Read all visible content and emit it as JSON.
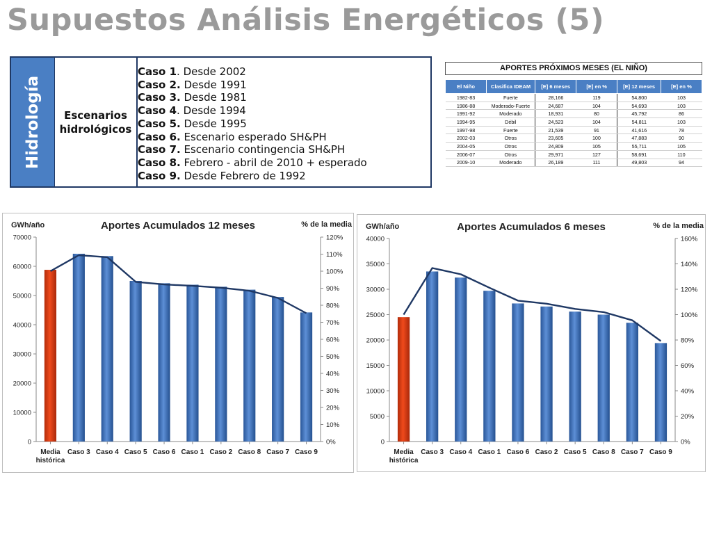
{
  "page_title": "Supuestos Análisis Energéticos (5)",
  "hydrology": {
    "side_label": "Hidrología",
    "mid_label_1": "Escenarios",
    "mid_label_2": "hidrológicos",
    "cases": [
      {
        "bold": "Caso 1",
        "rest": ". Desde 2002"
      },
      {
        "bold": "Caso 2.",
        "rest": " Desde 1991"
      },
      {
        "bold": "Caso 3.",
        "rest": " Desde 1981"
      },
      {
        "bold": "Caso 4",
        "rest": ". Desde 1994"
      },
      {
        "bold": "Caso 5.",
        "rest": " Desde 1995"
      },
      {
        "bold": "Caso 6.",
        "rest": " Escenario esperado SH&PH"
      },
      {
        "bold": "Caso 7.",
        "rest": " Escenario contingencia  SH&PH"
      },
      {
        "bold": "Caso 8.",
        "rest": " Febrero - abril de 2010 + esperado"
      },
      {
        "bold": "Caso 9.",
        "rest": " Desde Febrero de 1992"
      }
    ]
  },
  "nino_table": {
    "title": "APORTES PRÓXIMOS MESES (EL NIÑO)",
    "headers": [
      "El Niño",
      "Clasifica IDEAM",
      "[E] 6 meses",
      "[E] en %",
      "[E] 12 meses",
      "[E] en %"
    ],
    "rows": [
      [
        "1982-83",
        "Fuerte",
        "28,166",
        "119",
        "54,800",
        "103"
      ],
      [
        "1986-88",
        "Moderado-Fuerte",
        "24,687",
        "104",
        "54,693",
        "103"
      ],
      [
        "1991-92",
        "Moderado",
        "18,931",
        "80",
        "45,792",
        "86"
      ],
      [
        "1994-95",
        "Débil",
        "24,523",
        "104",
        "54,811",
        "103"
      ],
      [
        "1997-98",
        "Fuerte",
        "21,539",
        "91",
        "41,616",
        "78"
      ],
      [
        "2002-03",
        "Otros",
        "23,605",
        "100",
        "47,883",
        "90"
      ],
      [
        "2004-05",
        "Otros",
        "24,809",
        "105",
        "55,711",
        "105"
      ],
      [
        "2006-07",
        "Otros",
        "29,971",
        "127",
        "58,691",
        "110"
      ],
      [
        "2009-10",
        "Moderado",
        "26,189",
        "111",
        "49,803",
        "94"
      ]
    ]
  },
  "colors": {
    "bar_blue": "#3b6fb6",
    "bar_red": "#d43a12",
    "line": "#1f3864",
    "header_blue": "#4a7fc4"
  },
  "chart_data": [
    {
      "type": "bar",
      "title": "Aportes Acumulados 12 meses",
      "ylabel": "GWh/año",
      "y2label": "% de la media",
      "categories": [
        "Media histórica",
        "Caso 3",
        "Caso 4",
        "Caso 5",
        "Caso 6",
        "Caso 1",
        "Caso 2",
        "Caso 8",
        "Caso 7",
        "Caso 9"
      ],
      "category_lines": [
        [
          "Media",
          "histórica"
        ],
        [
          "Caso 3"
        ],
        [
          "Caso 4"
        ],
        [
          "Caso 5"
        ],
        [
          "Caso 6"
        ],
        [
          "Caso 1"
        ],
        [
          "Caso 2"
        ],
        [
          "Caso 8"
        ],
        [
          "Caso 7"
        ],
        [
          "Caso 9"
        ]
      ],
      "values": [
        58800,
        64300,
        63500,
        55000,
        54200,
        53700,
        53000,
        52000,
        49500,
        44200
      ],
      "line_percent": [
        100,
        109.4,
        108.2,
        93.7,
        92.2,
        91.4,
        90.3,
        88.5,
        84.3,
        75.3
      ],
      "ylim": [
        0,
        70000
      ],
      "ytick_step": 10000,
      "y2lim": [
        0,
        120
      ],
      "y2tick_step": 10,
      "highlight_index": 0
    },
    {
      "type": "bar",
      "title": "Aportes Acumulados 6 meses",
      "ylabel": "GWh/año",
      "y2label": "% de la media",
      "categories": [
        "Media histórica",
        "Caso 3",
        "Caso 4",
        "Caso 1",
        "Caso 6",
        "Caso 2",
        "Caso 5",
        "Caso 8",
        "Caso 7",
        "Caso 9"
      ],
      "category_lines": [
        [
          "Media",
          "histórica"
        ],
        [
          "Caso 3"
        ],
        [
          "Caso 4"
        ],
        [
          "Caso 1"
        ],
        [
          "Caso 6"
        ],
        [
          "Caso 2"
        ],
        [
          "Caso 5"
        ],
        [
          "Caso 8"
        ],
        [
          "Caso 7"
        ],
        [
          "Caso 9"
        ]
      ],
      "values": [
        24500,
        33500,
        32300,
        29700,
        27200,
        26600,
        25600,
        25000,
        23400,
        19400
      ],
      "line_percent": [
        100,
        136.7,
        131.8,
        121.2,
        111.0,
        108.6,
        104.5,
        102.0,
        95.5,
        79.2
      ],
      "ylim": [
        0,
        40000
      ],
      "ytick_step": 5000,
      "y2lim": [
        0,
        160
      ],
      "y2tick_step": 20,
      "highlight_index": 0
    }
  ]
}
